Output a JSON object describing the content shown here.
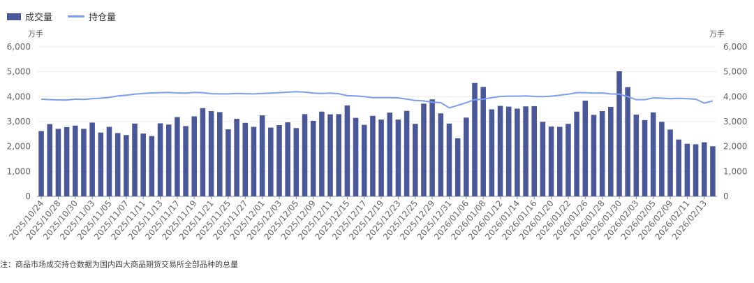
{
  "legend": {
    "volume_label": "成交量",
    "oi_label": "持仓量"
  },
  "units": {
    "left": "万手",
    "right": "万手"
  },
  "note": "注：商品市场成交持仓数据为国内四大商品期货交易所全部品种的总量",
  "colors": {
    "bar": "#4a5799",
    "line": "#7b9ef2",
    "grid": "#ececec",
    "axis": "#888888"
  },
  "chart_data": {
    "type": "bar+line",
    "ylim": [
      0,
      6000
    ],
    "yticks": [
      "0",
      "1,000",
      "2,000",
      "3,000",
      "4,000",
      "5,000",
      "6,000"
    ],
    "xlabels": [
      "2025/10/24",
      "2025/10/28",
      "2025/10/30",
      "2025/11/03",
      "2025/11/05",
      "2025/11/07",
      "2025/11/11",
      "2025/11/13",
      "2025/11/17",
      "2025/11/19",
      "2025/11/21",
      "2025/11/25",
      "2025/11/27",
      "2025/12/01",
      "2025/12/03",
      "2025/12/05",
      "2025/12/09",
      "2025/12/11",
      "2025/12/15",
      "2025/12/17",
      "2025/12/19",
      "2025/12/23",
      "2025/12/25",
      "2025/12/29",
      "2025/12/31",
      "2026/01/06",
      "2026/01/08",
      "2026/01/12",
      "2026/01/14",
      "2026/01/16",
      "2026/01/20",
      "2026/01/22",
      "2026/01/26",
      "2026/01/28",
      "2026/01/30",
      "2026/02/03",
      "2026/02/05",
      "2026/02/09",
      "2026/02/11",
      "2026/02/13"
    ],
    "series": [
      {
        "name": "成交量",
        "type": "bar",
        "values": [
          2620,
          2900,
          2710,
          2780,
          2840,
          2710,
          2960,
          2560,
          2790,
          2540,
          2460,
          2920,
          2520,
          2420,
          2930,
          2880,
          3180,
          2820,
          3210,
          3540,
          3420,
          3380,
          2690,
          3110,
          2950,
          2790,
          3250,
          2760,
          2860,
          2970,
          2740,
          3300,
          3030,
          3400,
          3290,
          3300,
          3650,
          3150,
          2870,
          3230,
          3080,
          3360,
          3080,
          3430,
          2910,
          3720,
          3890,
          3330,
          2920,
          2330,
          3160,
          4550,
          4390,
          3490,
          3630,
          3600,
          3520,
          3610,
          3620,
          2990,
          2800,
          2790,
          2910,
          3400,
          3840,
          3270,
          3420,
          3590,
          5020,
          4380,
          3280,
          3060,
          3370,
          2990,
          2680,
          2280,
          2110,
          2090,
          2170,
          2010
        ]
      },
      {
        "name": "持仓量",
        "type": "line",
        "values": [
          3900,
          3880,
          3870,
          3860,
          3900,
          3890,
          3920,
          3940,
          3970,
          4030,
          4060,
          4100,
          4130,
          4150,
          4160,
          4170,
          4150,
          4140,
          4170,
          4160,
          4120,
          4110,
          4110,
          4130,
          4120,
          4110,
          4130,
          4140,
          4160,
          4180,
          4200,
          4180,
          4140,
          4130,
          4140,
          4120,
          4040,
          4030,
          4000,
          3960,
          3960,
          3960,
          3950,
          3900,
          3850,
          3830,
          3780,
          3760,
          3550,
          3650,
          3760,
          3880,
          3900,
          3960,
          4010,
          4020,
          4020,
          4030,
          4010,
          4000,
          4020,
          4060,
          4100,
          4160,
          4160,
          4140,
          4150,
          4110,
          4100,
          4000,
          3880,
          3880,
          3950,
          3940,
          3920,
          3930,
          3920,
          3900,
          3740,
          3830
        ]
      }
    ]
  }
}
